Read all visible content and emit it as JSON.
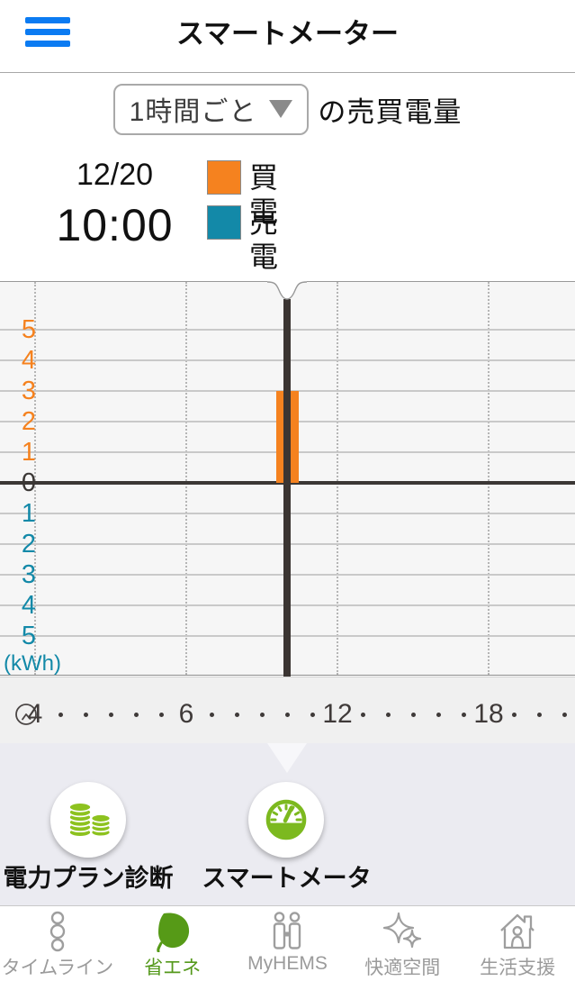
{
  "header": {
    "title": "スマートメーター"
  },
  "controls": {
    "interval_value": "1時間ごと",
    "suffix_label": "の売買電量"
  },
  "reading": {
    "date": "12/20",
    "time": "10:00",
    "rows": [
      {
        "label": "買電",
        "value": "3.0",
        "unit": "kWh",
        "color": "#f5821f"
      },
      {
        "label": "売電",
        "value": "0.0",
        "unit": "kWh",
        "color": "#1389a8"
      }
    ]
  },
  "chart_data": {
    "type": "bar",
    "title": "1時間ごとの売買電量",
    "ylabel": "(kWh)",
    "ylim": [
      -5,
      5
    ],
    "y_ticks_buy": [
      "5",
      "4",
      "3",
      "2",
      "1"
    ],
    "y_zero": "0",
    "y_ticks_sell": [
      "1",
      "2",
      "3",
      "4",
      "5"
    ],
    "y_unit_label": "(kWh)",
    "grid_hours": [
      0,
      6,
      12,
      18
    ],
    "x_axis_display": [
      "4",
      ".",
      ".",
      ".",
      ".",
      ".",
      "6",
      ".",
      ".",
      ".",
      ".",
      ".",
      "12",
      ".",
      ".",
      ".",
      ".",
      ".",
      "18",
      ".",
      ".",
      "."
    ],
    "cursor_hour": 10,
    "series": [
      {
        "name": "買電",
        "color": "#f5821f",
        "direction": "positive",
        "points": [
          {
            "hour": 10,
            "value": 3.0
          }
        ]
      },
      {
        "name": "売電",
        "color": "#1389a8",
        "direction": "negative",
        "points": [
          {
            "hour": 10,
            "value": 0.0
          }
        ]
      }
    ],
    "legend_position": "top",
    "grid": true
  },
  "shortcuts": [
    {
      "label": "電力プラン診断",
      "icon": "coins-icon"
    },
    {
      "label": "スマートメーター",
      "icon": "gauge-icon"
    }
  ],
  "tabbar": [
    {
      "label": "タイムライン",
      "icon": "timeline-icon",
      "active": false
    },
    {
      "label": "省エネ",
      "icon": "leaf-icon",
      "active": true
    },
    {
      "label": "MyHEMS",
      "icon": "people-icon",
      "active": false
    },
    {
      "label": "快適空間",
      "icon": "sparkle-icon",
      "active": false
    },
    {
      "label": "生活支援",
      "icon": "house-icon",
      "active": false
    }
  ],
  "colors": {
    "buy_orange": "#f5821f",
    "sell_teal": "#1389a8",
    "menu_blue": "#0b7bf2",
    "active_green": "#55991c",
    "icon_green": "#7cb91f",
    "coin_green": "#8dc21f"
  }
}
